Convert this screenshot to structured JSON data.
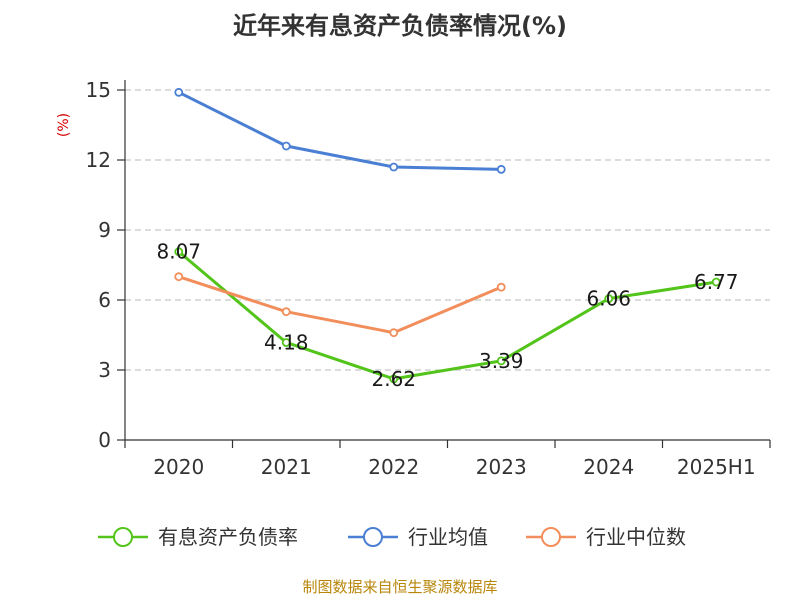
{
  "chart_data": {
    "type": "line",
    "title": "近年来有息资产负债率情况(%)",
    "ylabel": "(%)",
    "ylim": [
      0,
      15
    ],
    "yticks": [
      0,
      3,
      6,
      9,
      12,
      15
    ],
    "categories": [
      "2020",
      "2021",
      "2022",
      "2023",
      "2024",
      "2025H1"
    ],
    "grid": true,
    "legend_position": "bottom",
    "series": [
      {
        "name": "有息资产负债率",
        "color": "#52c41a",
        "values": [
          8.07,
          4.18,
          2.62,
          3.39,
          6.06,
          6.77
        ],
        "show_labels": true
      },
      {
        "name": "行业均值",
        "color": "#4a7fd4",
        "values": [
          14.9,
          12.6,
          11.7,
          11.6,
          null,
          null
        ],
        "show_labels": false
      },
      {
        "name": "行业中位数",
        "color": "#f28e5b",
        "values": [
          7.0,
          5.5,
          4.6,
          6.55,
          null,
          null
        ],
        "show_labels": false
      }
    ],
    "source": "制图数据来自恒生聚源数据库"
  }
}
